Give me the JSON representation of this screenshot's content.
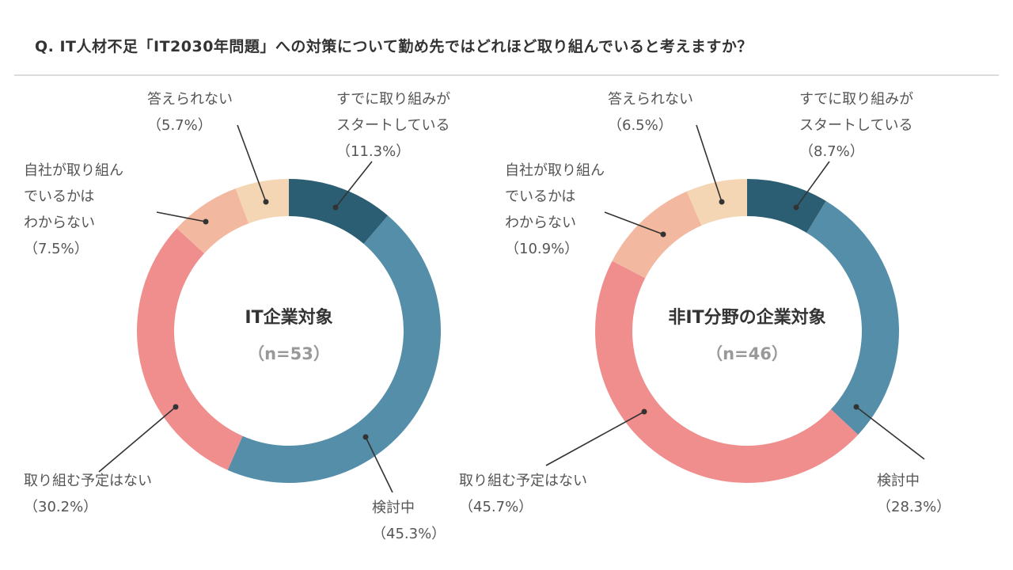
{
  "question": "Q. IT人材不足「IT2030年問題」への対策について勤め先ではどれほど取り組んでいると考えますか？",
  "colors": {
    "already_started": "#2b5e73",
    "considering": "#548ea8",
    "no_plan": "#f08d8d",
    "unknown": "#f2b8a0",
    "no_answer": "#f4d6b4",
    "title_text": "#333333",
    "sub_text": "#999999",
    "label_text": "#555555"
  },
  "chart_data": [
    {
      "type": "pie",
      "title": "IT企業対象",
      "subtitle": "（n=53）",
      "categories": [
        "すでに取り組みがスタートしている",
        "検討中",
        "取り組む予定はない",
        "自社が取り組んでいるかはわからない",
        "答えられない"
      ],
      "values": [
        11.3,
        45.3,
        30.2,
        7.5,
        5.7
      ],
      "labels": [
        {
          "lines": [
            "すでに取り組みが",
            "スタートしている",
            "（11.3%）"
          ]
        },
        {
          "lines": [
            "検討中",
            "（45.3%）"
          ]
        },
        {
          "lines": [
            "取り組む予定はない",
            "（30.2%）"
          ]
        },
        {
          "lines": [
            "自社が取り組ん",
            "でいるかは",
            "わからない",
            "（7.5%）"
          ]
        },
        {
          "lines": [
            "答えられない",
            "（5.7%）"
          ]
        }
      ]
    },
    {
      "type": "pie",
      "title": "非IT分野の企業対象",
      "subtitle": "（n=46）",
      "categories": [
        "すでに取り組みがスタートしている",
        "検討中",
        "取り組む予定はない",
        "自社が取り組んでいるかはわからない",
        "答えられない"
      ],
      "values": [
        8.7,
        28.3,
        45.7,
        10.9,
        6.5
      ],
      "labels": [
        {
          "lines": [
            "すでに取り組みが",
            "スタートしている",
            "（8.7%）"
          ]
        },
        {
          "lines": [
            "検討中",
            "（28.3%）"
          ]
        },
        {
          "lines": [
            "取り組む予定はない",
            "（45.7%）"
          ]
        },
        {
          "lines": [
            "自社が取り組ん",
            "でいるかは",
            "わからない",
            "（10.9%）"
          ]
        },
        {
          "lines": [
            "答えられない",
            "（6.5%）"
          ]
        }
      ]
    }
  ]
}
